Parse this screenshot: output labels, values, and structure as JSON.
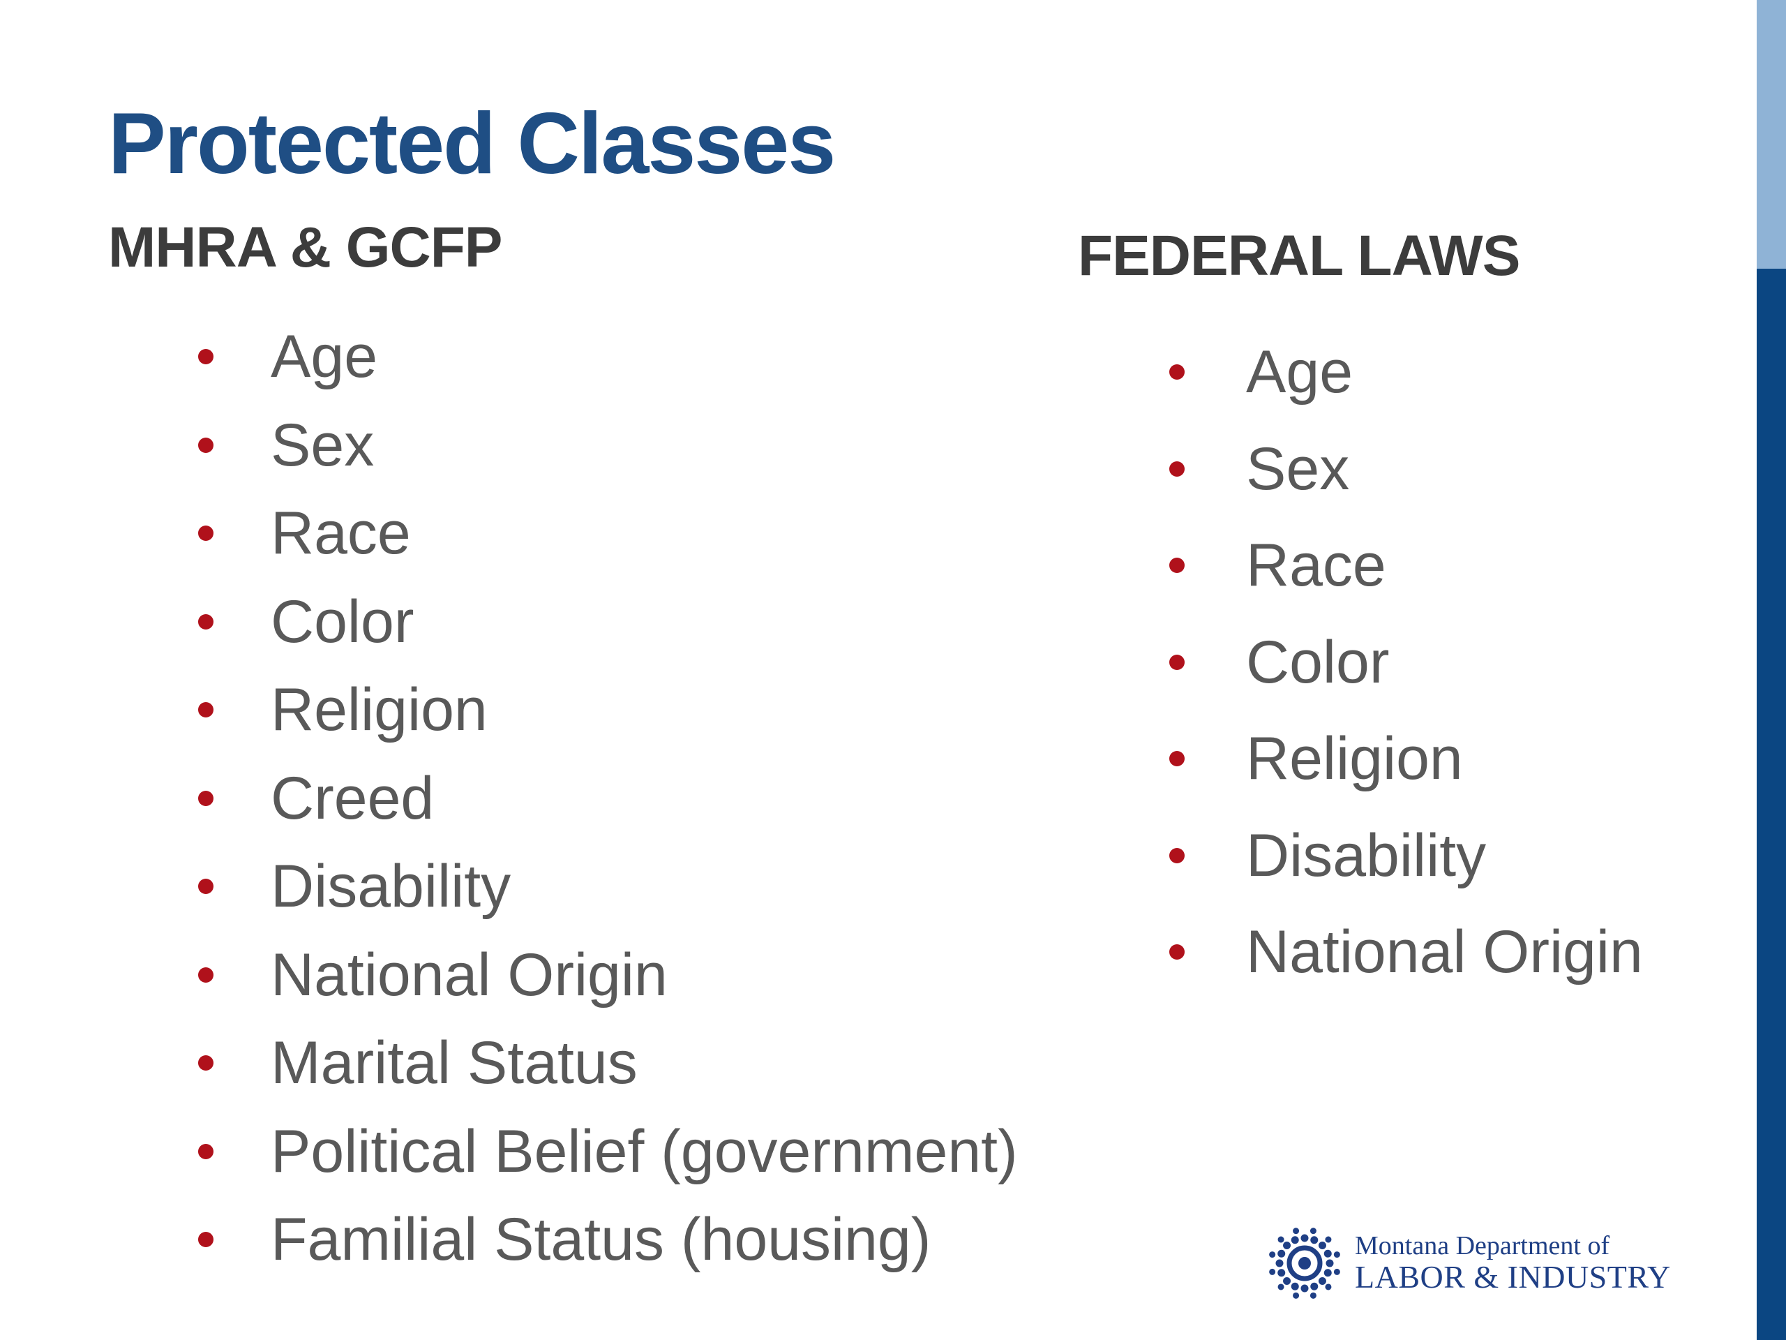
{
  "colors": {
    "title": "#1f4e84",
    "bullet": "#b0111b",
    "edge_bar_light": "#8fb3d6",
    "edge_bar_dark": "#0b4682",
    "logo": "#1f3f85"
  },
  "slide": {
    "title": "Protected Classes"
  },
  "left_column": {
    "heading": "MHRA & GCFP",
    "items": [
      "Age",
      "Sex",
      "Race",
      "Color",
      "Religion",
      "Creed",
      "Disability",
      "National Origin",
      "Marital Status",
      "Political Belief (government)",
      "Familial Status (housing)"
    ]
  },
  "right_column": {
    "heading": "FEDERAL LAWS",
    "items": [
      "Age",
      "Sex",
      "Race",
      "Color",
      "Religion",
      "Disability",
      "National Origin"
    ]
  },
  "logo": {
    "icon": "sunburst-seal-icon",
    "line1": "Montana Department of",
    "line2": "LABOR & INDUSTRY"
  }
}
